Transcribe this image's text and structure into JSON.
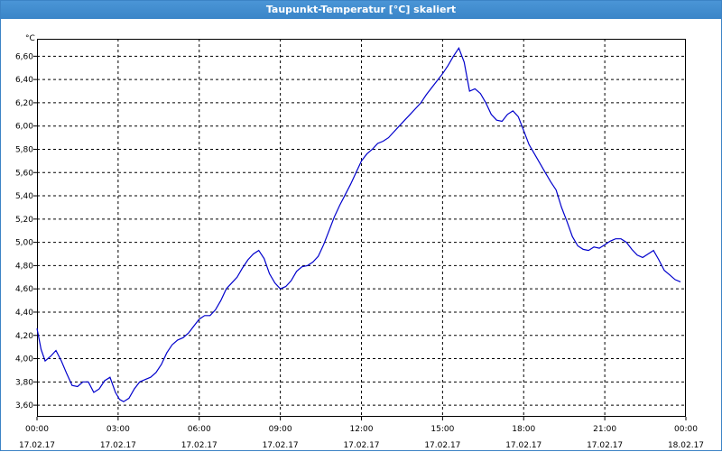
{
  "window": {
    "title": "Taupunkt-Temperatur [°C] skaliert"
  },
  "chart_data": {
    "type": "line",
    "title": "Taupunkt-Temperatur [°C] skaliert",
    "ylabel": "°C",
    "xlabel": "",
    "xlim": [
      0,
      24
    ],
    "ylim": [
      3.5,
      6.75
    ],
    "grid": true,
    "y_ticks": [
      "3,60",
      "3,80",
      "4,00",
      "4,20",
      "4,40",
      "4,60",
      "4,80",
      "5,00",
      "5,20",
      "5,40",
      "5,60",
      "5,80",
      "6,00",
      "6,20",
      "6,40",
      "6,60"
    ],
    "x_ticks": [
      {
        "time": "00:00",
        "date": "17.02.17"
      },
      {
        "time": "03:00",
        "date": "17.02.17"
      },
      {
        "time": "06:00",
        "date": "17.02.17"
      },
      {
        "time": "09:00",
        "date": "17.02.17"
      },
      {
        "time": "12:00",
        "date": "17.02.17"
      },
      {
        "time": "15:00",
        "date": "17.02.17"
      },
      {
        "time": "18:00",
        "date": "17.02.17"
      },
      {
        "time": "21:00",
        "date": "17.02.17"
      },
      {
        "time": "00:00",
        "date": "18.02.17"
      }
    ],
    "series": [
      {
        "color": "#0000cc",
        "x": [
          0,
          0.15,
          0.3,
          0.5,
          0.7,
          0.9,
          1.1,
          1.3,
          1.5,
          1.7,
          1.9,
          2.1,
          2.3,
          2.5,
          2.7,
          2.9,
          3.05,
          3.2,
          3.4,
          3.6,
          3.8,
          4.0,
          4.2,
          4.4,
          4.6,
          4.8,
          5.0,
          5.2,
          5.4,
          5.6,
          5.8,
          6.0,
          6.2,
          6.4,
          6.6,
          6.8,
          7.0,
          7.2,
          7.4,
          7.6,
          7.8,
          8.0,
          8.2,
          8.4,
          8.6,
          8.8,
          9.0,
          9.2,
          9.4,
          9.6,
          9.8,
          10.0,
          10.2,
          10.4,
          10.6,
          10.8,
          11.0,
          11.2,
          11.4,
          11.6,
          11.8,
          12.0,
          12.2,
          12.4,
          12.6,
          12.8,
          13.0,
          13.2,
          13.4,
          13.6,
          13.8,
          14.0,
          14.2,
          14.4,
          14.6,
          14.8,
          15.0,
          15.2,
          15.4,
          15.6,
          15.8,
          16.0,
          16.2,
          16.4,
          16.6,
          16.8,
          17.0,
          17.2,
          17.4,
          17.6,
          17.8,
          18.0,
          18.2,
          18.4,
          18.6,
          18.8,
          19.0,
          19.2,
          19.4,
          19.6,
          19.8,
          20.0,
          20.2,
          20.4,
          20.6,
          20.8,
          21.0,
          21.2,
          21.4,
          21.6,
          21.8,
          22.0,
          22.2,
          22.4,
          22.6,
          22.8,
          23.0,
          23.2,
          23.4,
          23.6,
          23.8
        ],
        "y": [
          4.26,
          4.08,
          3.98,
          4.02,
          4.07,
          3.98,
          3.87,
          3.77,
          3.76,
          3.8,
          3.8,
          3.71,
          3.74,
          3.81,
          3.84,
          3.71,
          3.65,
          3.63,
          3.66,
          3.74,
          3.8,
          3.82,
          3.84,
          3.88,
          3.95,
          4.05,
          4.12,
          4.16,
          4.18,
          4.22,
          4.28,
          4.34,
          4.37,
          4.37,
          4.42,
          4.5,
          4.6,
          4.65,
          4.7,
          4.78,
          4.85,
          4.9,
          4.93,
          4.86,
          4.73,
          4.65,
          4.6,
          4.62,
          4.67,
          4.75,
          4.79,
          4.8,
          4.83,
          4.88,
          4.98,
          5.1,
          5.22,
          5.32,
          5.41,
          5.5,
          5.6,
          5.7,
          5.76,
          5.8,
          5.85,
          5.87,
          5.9,
          5.95,
          6.0,
          6.05,
          6.1,
          6.15,
          6.2,
          6.27,
          6.33,
          6.39,
          6.45,
          6.52,
          6.6,
          6.67,
          6.55,
          6.3,
          6.32,
          6.28,
          6.2,
          6.1,
          6.05,
          6.04,
          6.1,
          6.13,
          6.08,
          5.96,
          5.84,
          5.76,
          5.68,
          5.6,
          5.52,
          5.45,
          5.3,
          5.18,
          5.05,
          4.97,
          4.94,
          4.93,
          4.96,
          4.95,
          4.98,
          5.01,
          5.03,
          5.03,
          5.0,
          4.94,
          4.89,
          4.87,
          4.9,
          4.93,
          4.85,
          4.76,
          4.72,
          4.68,
          4.66
        ]
      }
    ]
  }
}
